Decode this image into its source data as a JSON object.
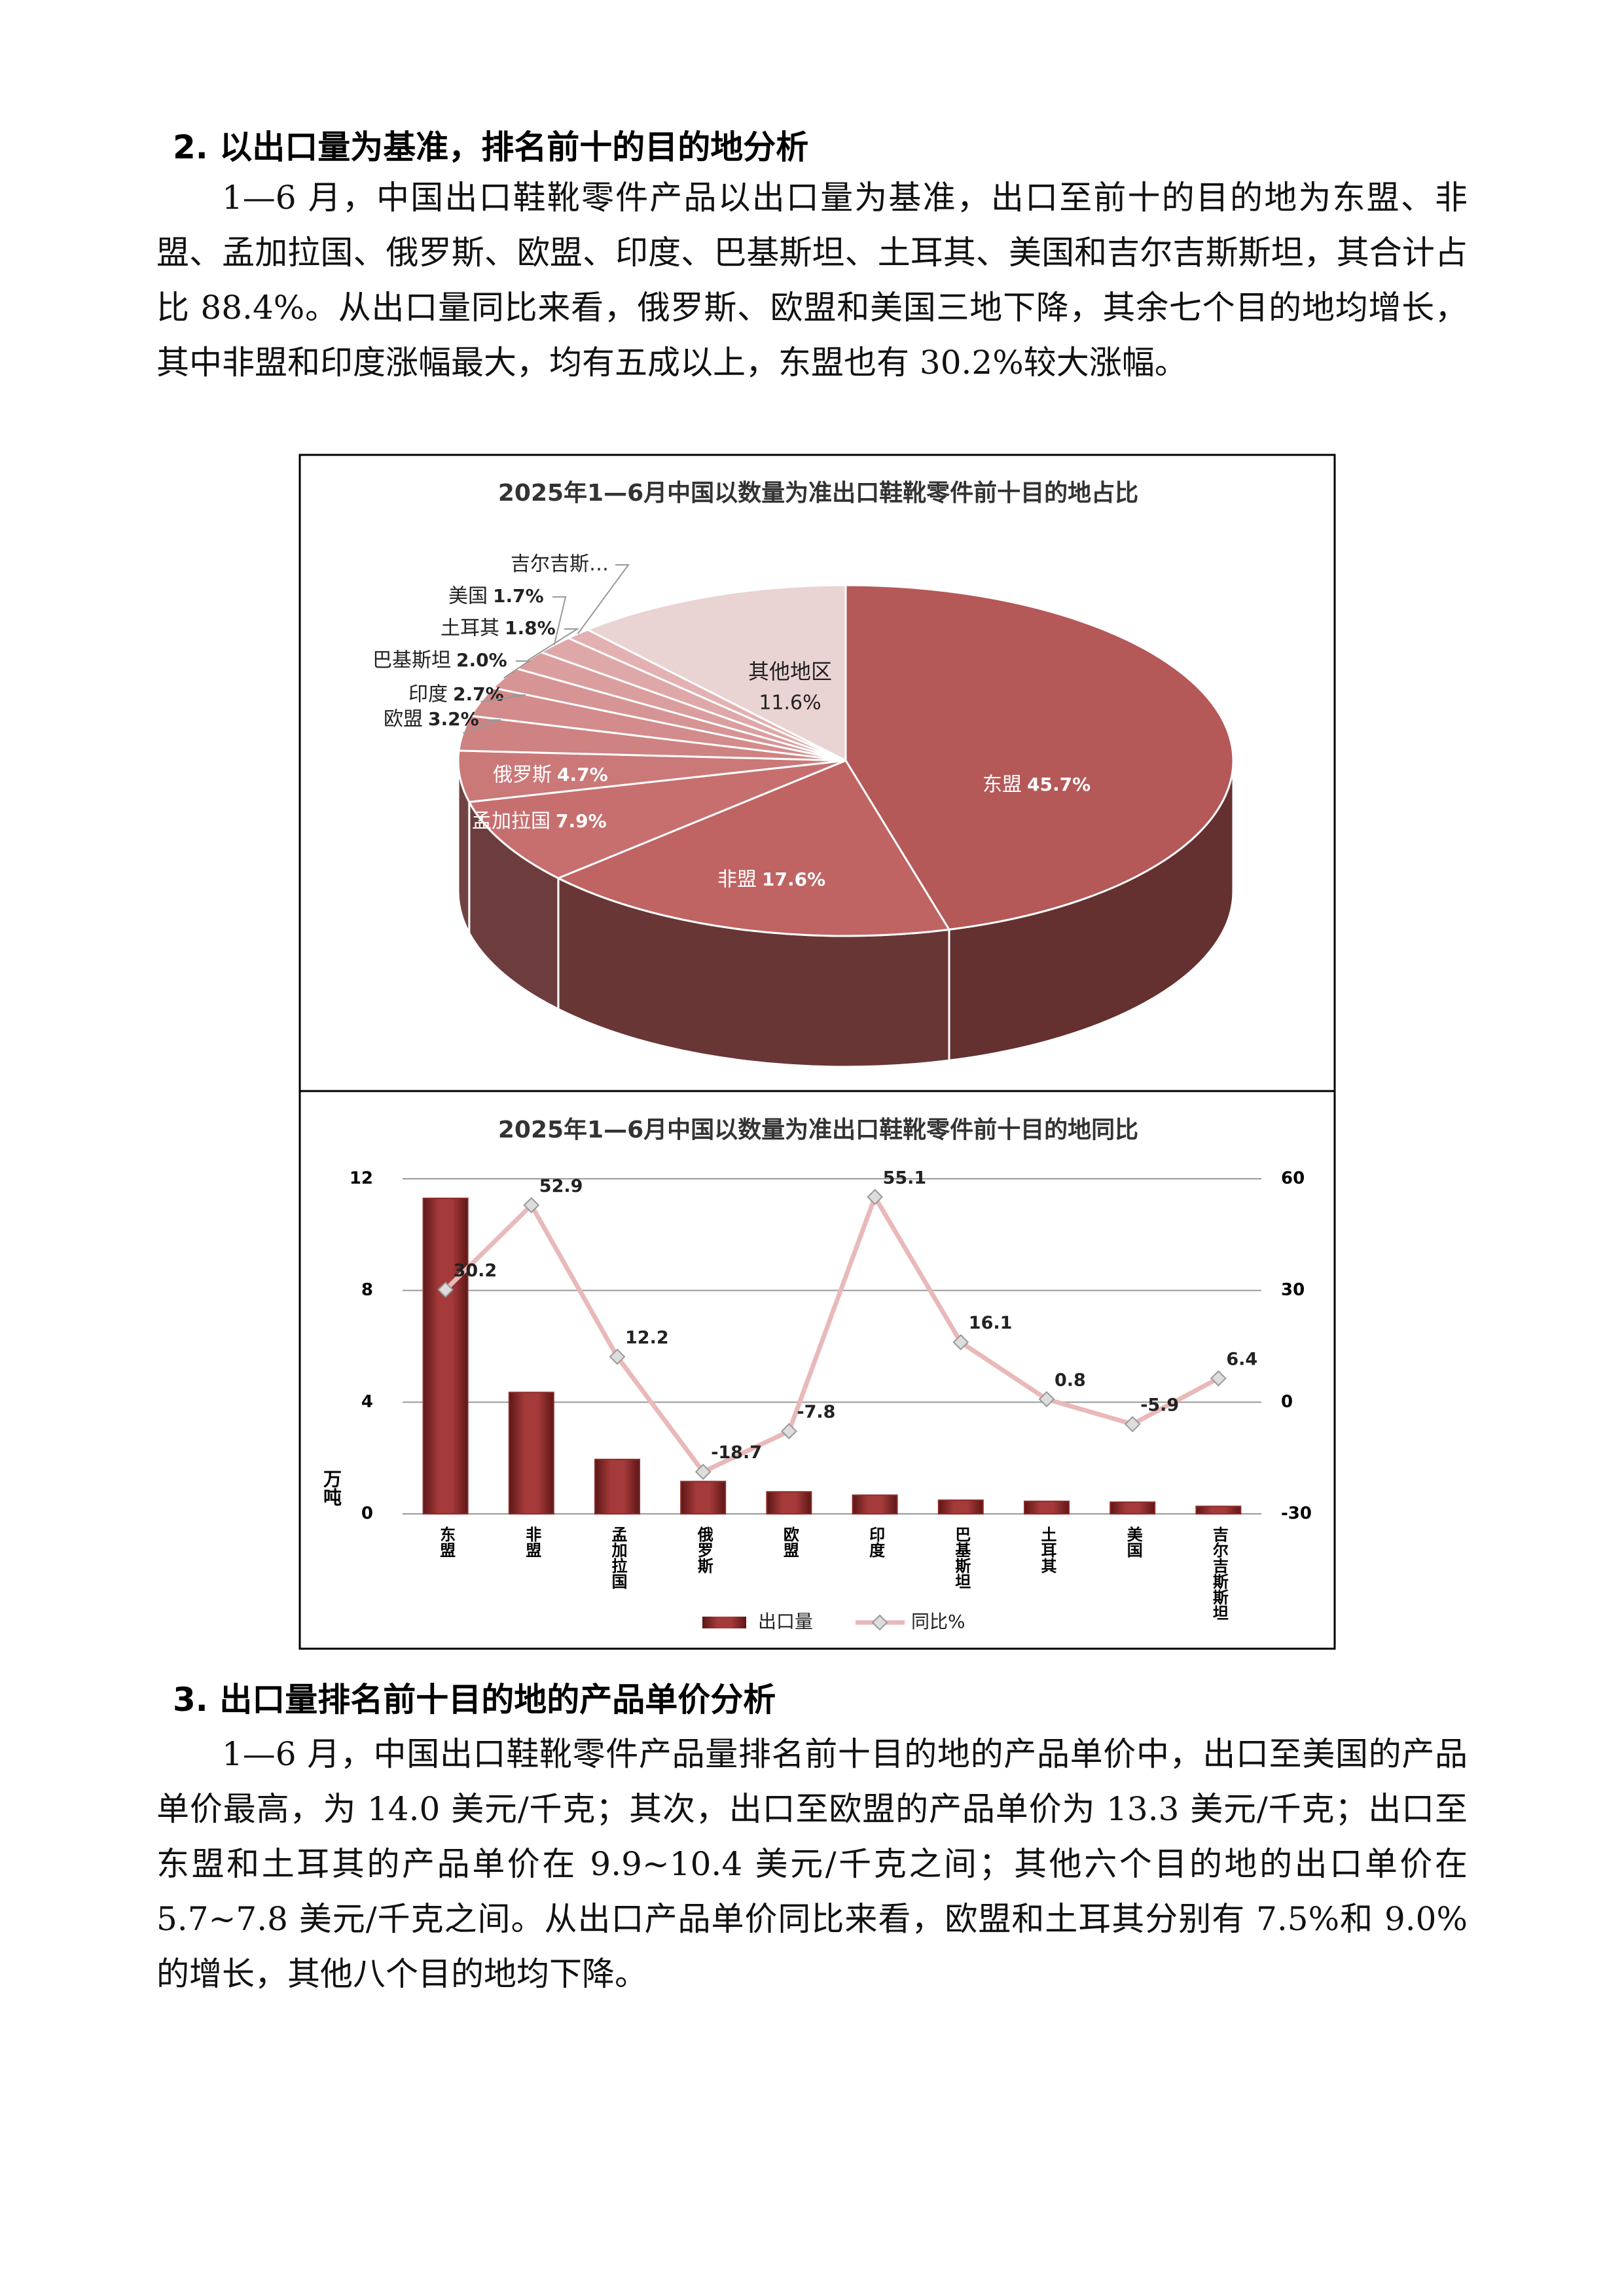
{
  "sections": [
    {
      "heading": "2. 以出口量为基准，排名前十的目的地分析",
      "paragraph": "1—6 月，中国出口鞋靴零件产品以出口量为基准，出口至前十的目的地为东盟、非盟、孟加拉国、俄罗斯、欧盟、印度、巴基斯坦、土耳其、美国和吉尔吉斯斯坦，其合计占比 88.4%。从出口量同比来看，俄罗斯、欧盟和美国三地下降，其余七个目的地均增长，其中非盟和印度涨幅最大，均有五成以上，东盟也有 30.2%较大涨幅。"
    },
    {
      "heading": "3. 出口量排名前十目的地的产品单价分析",
      "paragraph": "1—6 月，中国出口鞋靴零件产品量排名前十目的地的产品单价中，出口至美国的产品单价最高，为 14.0 美元/千克；其次，出口至欧盟的产品单价为 13.3 美元/千克；出口至东盟和土耳其的产品单价在 9.9~10.4 美元/千克之间；其他六个目的地的出口单价在 5.7~7.8 美元/千克之间。从出口产品单价同比来看，欧盟和土耳其分别有 7.5%和 9.0%的增长，其他八个目的地均下降。"
    }
  ],
  "chart_data": [
    {
      "type": "pie",
      "title": "2025年1—6月中国以数量为准出口鞋靴零件前十目的地占比",
      "categories": [
        "东盟",
        "非盟",
        "孟加拉国",
        "俄罗斯",
        "欧盟",
        "印度",
        "巴基斯坦",
        "土耳其",
        "美国",
        "吉尔吉斯…",
        "其他地区"
      ],
      "values": [
        45.7,
        17.6,
        7.9,
        4.7,
        3.2,
        2.7,
        2.0,
        1.8,
        1.7,
        1.1,
        11.6
      ],
      "value_labels": [
        "45.7%",
        "17.6%",
        "7.9%",
        "4.7%",
        "3.2%",
        "2.7%",
        "2.0%",
        "1.8%",
        "1.7%",
        null,
        "11.6%"
      ],
      "colors": [
        "#b55858",
        "#bf6363",
        "#c76f6f",
        "#cb7878",
        "#cf8282",
        "#d38b8b",
        "#d79494",
        "#db9e9e",
        "#dfa8a8",
        "#e3b1b1",
        "#ead3d3"
      ]
    },
    {
      "type": "bar",
      "title": "2025年1—6月中国以数量为准出口鞋靴零件前十目的地同比",
      "categories": [
        "东盟",
        "非盟",
        "孟加拉国",
        "俄罗斯",
        "欧盟",
        "印度",
        "巴基斯坦",
        "土耳其",
        "美国",
        "吉尔吉斯斯坦"
      ],
      "ylabel": "万吨",
      "ylim": [
        0,
        12
      ],
      "yticks": [
        0,
        4,
        8,
        12
      ],
      "y2lim": [
        -30,
        60
      ],
      "y2ticks": [
        -30,
        0,
        30,
        60
      ],
      "grid": true,
      "legend": "bottom",
      "series": [
        {
          "name": "出口量",
          "type": "bar",
          "color": "#8e2b2b",
          "values": [
            11.3,
            4.35,
            1.95,
            1.16,
            0.79,
            0.67,
            0.49,
            0.45,
            0.42,
            0.27
          ]
        },
        {
          "name": "同比%",
          "type": "line",
          "axis": "y2",
          "color": "#e9b9b9",
          "values": [
            30.2,
            52.9,
            12.2,
            -18.7,
            -7.8,
            55.1,
            16.1,
            0.8,
            -5.9,
            6.4
          ]
        }
      ]
    }
  ]
}
